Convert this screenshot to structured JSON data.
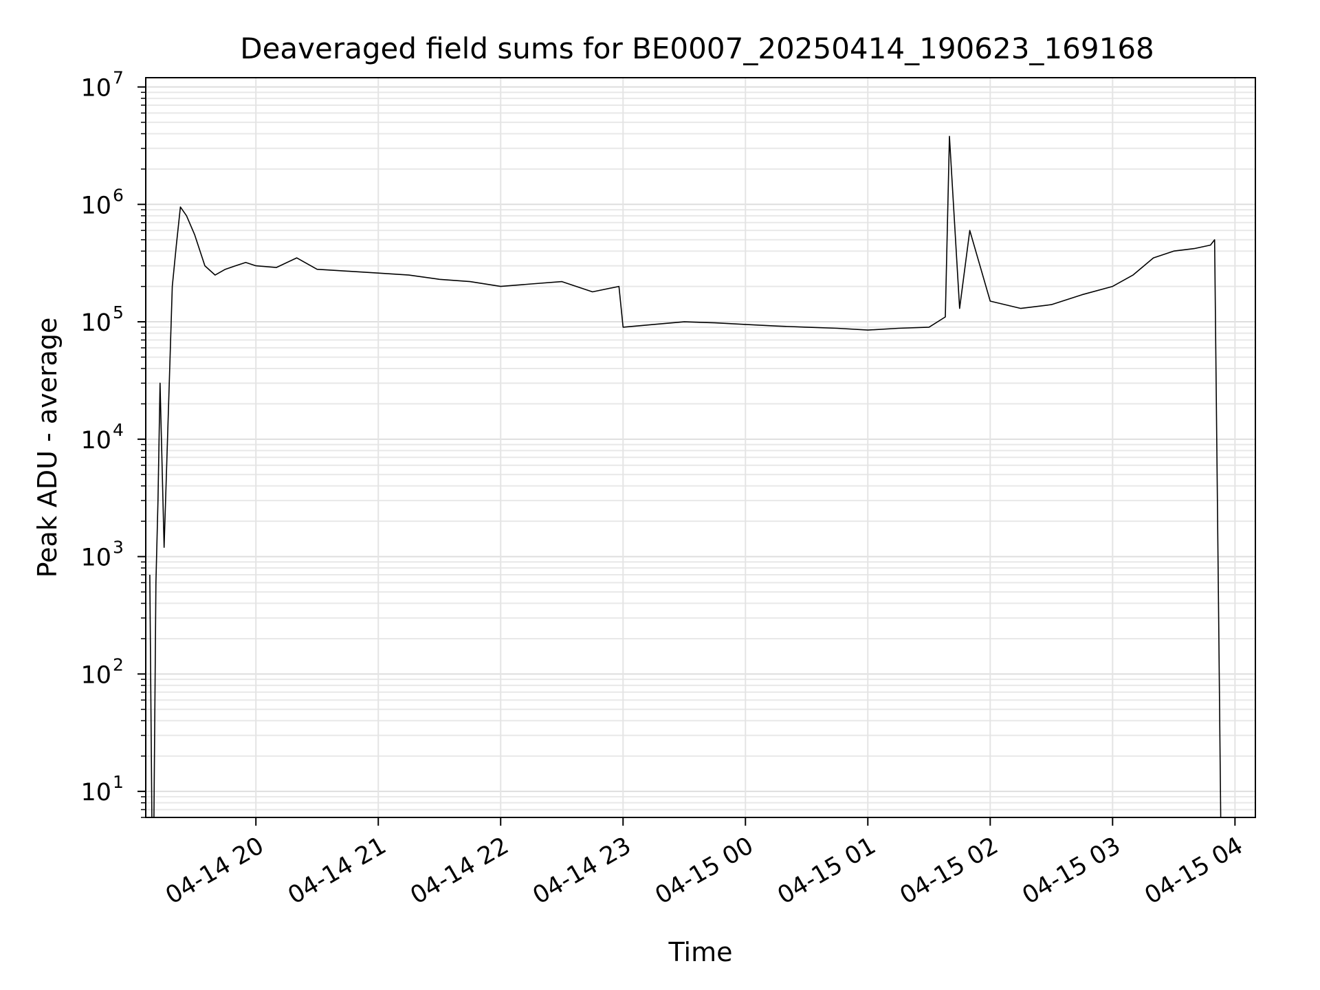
{
  "chart_data": {
    "type": "line",
    "title": "Deaveraged field sums for BE0007_20250414_190623_169168",
    "xlabel": "Time",
    "ylabel": "Peak ADU - average",
    "yscale": "log",
    "ylim": [
      6,
      12000000
    ],
    "xlim": [
      "2025-04-14 19:06",
      "2025-04-15 04:10"
    ],
    "grid": true,
    "line_color": "#000000",
    "x_ticks": [
      {
        "x": "2025-04-14 20:00",
        "label": "04-14 20"
      },
      {
        "x": "2025-04-14 21:00",
        "label": "04-14 21"
      },
      {
        "x": "2025-04-14 22:00",
        "label": "04-14 22"
      },
      {
        "x": "2025-04-14 23:00",
        "label": "04-14 23"
      },
      {
        "x": "2025-04-15 00:00",
        "label": "04-15 00"
      },
      {
        "x": "2025-04-15 01:00",
        "label": "04-15 01"
      },
      {
        "x": "2025-04-15 02:00",
        "label": "04-15 02"
      },
      {
        "x": "2025-04-15 03:00",
        "label": "04-15 03"
      },
      {
        "x": "2025-04-15 04:00",
        "label": "04-15 04"
      }
    ],
    "y_ticks": [
      {
        "value": 10,
        "base": "10",
        "exp": "1"
      },
      {
        "value": 100,
        "base": "10",
        "exp": "2"
      },
      {
        "value": 1000,
        "base": "10",
        "exp": "3"
      },
      {
        "value": 10000,
        "base": "10",
        "exp": "4"
      },
      {
        "value": 100000,
        "base": "10",
        "exp": "5"
      },
      {
        "value": 1000000,
        "base": "10",
        "exp": "6"
      },
      {
        "value": 10000000,
        "base": "10",
        "exp": "7"
      }
    ],
    "series": [
      {
        "x": [
          "2025-04-14 19:08",
          "2025-04-14 19:09",
          "2025-04-14 19:10",
          "2025-04-14 19:11",
          "2025-04-14 19:12",
          "2025-04-14 19:13",
          "2025-04-14 19:15",
          "2025-04-14 19:17",
          "2025-04-14 19:19",
          "2025-04-14 19:21",
          "2025-04-14 19:23",
          "2025-04-14 19:26",
          "2025-04-14 19:30",
          "2025-04-14 19:35",
          "2025-04-14 19:40",
          "2025-04-14 19:45",
          "2025-04-14 19:50",
          "2025-04-14 19:55",
          "2025-04-14 20:00",
          "2025-04-14 20:10",
          "2025-04-14 20:20",
          "2025-04-14 20:30",
          "2025-04-14 20:45",
          "2025-04-14 21:00",
          "2025-04-14 21:15",
          "2025-04-14 21:30",
          "2025-04-14 21:45",
          "2025-04-14 22:00",
          "2025-04-14 22:15",
          "2025-04-14 22:30",
          "2025-04-14 22:45",
          "2025-04-14 22:58",
          "2025-04-14 23:00",
          "2025-04-14 23:15",
          "2025-04-14 23:30",
          "2025-04-14 23:45",
          "2025-04-15 00:00",
          "2025-04-15 00:15",
          "2025-04-15 00:30",
          "2025-04-15 00:45",
          "2025-04-15 01:00",
          "2025-04-15 01:15",
          "2025-04-15 01:30",
          "2025-04-15 01:38",
          "2025-04-15 01:40",
          "2025-04-15 01:45",
          "2025-04-15 01:50",
          "2025-04-15 02:00",
          "2025-04-15 02:15",
          "2025-04-15 02:30",
          "2025-04-15 02:45",
          "2025-04-15 03:00",
          "2025-04-15 03:10",
          "2025-04-15 03:20",
          "2025-04-15 03:30",
          "2025-04-15 03:40",
          "2025-04-15 03:48",
          "2025-04-15 03:50",
          "2025-04-15 03:52",
          "2025-04-15 03:53"
        ],
        "y": [
          700,
          6,
          6,
          600,
          3000,
          30000,
          1200,
          15000,
          200000,
          450000,
          950000,
          800000,
          550000,
          300000,
          250000,
          280000,
          300000,
          320000,
          300000,
          290000,
          350000,
          280000,
          270000,
          260000,
          250000,
          230000,
          220000,
          200000,
          210000,
          220000,
          180000,
          200000,
          90000,
          95000,
          100000,
          98000,
          95000,
          92000,
          90000,
          88000,
          85000,
          88000,
          90000,
          110000,
          3800000,
          130000,
          600000,
          150000,
          130000,
          140000,
          170000,
          200000,
          250000,
          350000,
          400000,
          420000,
          450000,
          500000,
          300,
          6
        ]
      }
    ]
  }
}
